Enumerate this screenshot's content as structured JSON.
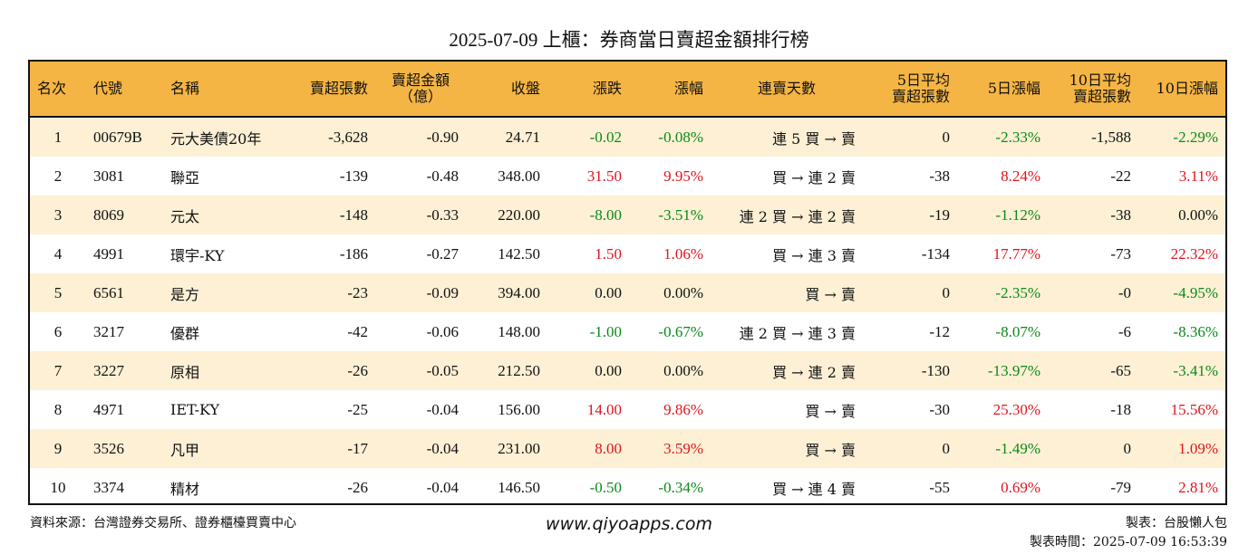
{
  "title": "2025-07-09 上櫃：券商當日賣超金額排行榜",
  "headers": [
    {
      "lines": [
        "名次"
      ],
      "align": "l"
    },
    {
      "lines": [
        "代號"
      ],
      "align": "l"
    },
    {
      "lines": [
        "名稱"
      ],
      "align": "l"
    },
    {
      "lines": [
        "賣超張數"
      ],
      "align": "r"
    },
    {
      "lines": [
        "賣超金額",
        "（億）"
      ],
      "align": "c"
    },
    {
      "lines": [
        "收盤"
      ],
      "align": "r"
    },
    {
      "lines": [
        "漲跌"
      ],
      "align": "r"
    },
    {
      "lines": [
        "漲幅"
      ],
      "align": "r"
    },
    {
      "lines": [
        "連賣天數"
      ],
      "align": "c"
    },
    {
      "lines": [
        "5日平均",
        "賣超張數"
      ],
      "align": "r"
    },
    {
      "lines": [
        "5日漲幅"
      ],
      "align": "r"
    },
    {
      "lines": [
        "10日平均",
        "賣超張數"
      ],
      "align": "r"
    },
    {
      "lines": [
        "10日漲幅"
      ],
      "align": "r"
    }
  ],
  "rows": [
    {
      "rank": "1",
      "code": "00679B",
      "name": "元大美債20年",
      "sell_lots": "-3,628",
      "sell_amt": "-0.90",
      "close": "24.71",
      "chg": "-0.02",
      "pct": "-0.08%",
      "days": "連 5 買 → 賣",
      "avg5": "0",
      "pct5": "-2.33%",
      "avg10": "-1,588",
      "pct10": "-2.29%"
    },
    {
      "rank": "2",
      "code": "3081",
      "name": "聯亞",
      "sell_lots": "-139",
      "sell_amt": "-0.48",
      "close": "348.00",
      "chg": "31.50",
      "pct": "9.95%",
      "days": "買 → 連 2 賣",
      "avg5": "-38",
      "pct5": "8.24%",
      "avg10": "-22",
      "pct10": "3.11%"
    },
    {
      "rank": "3",
      "code": "8069",
      "name": "元太",
      "sell_lots": "-148",
      "sell_amt": "-0.33",
      "close": "220.00",
      "chg": "-8.00",
      "pct": "-3.51%",
      "days": "連 2 買 → 連 2 賣",
      "avg5": "-19",
      "pct5": "-1.12%",
      "avg10": "-38",
      "pct10": "0.00%"
    },
    {
      "rank": "4",
      "code": "4991",
      "name": "環宇-KY",
      "sell_lots": "-186",
      "sell_amt": "-0.27",
      "close": "142.50",
      "chg": "1.50",
      "pct": "1.06%",
      "days": "買 → 連 3 賣",
      "avg5": "-134",
      "pct5": "17.77%",
      "avg10": "-73",
      "pct10": "22.32%"
    },
    {
      "rank": "5",
      "code": "6561",
      "name": "是方",
      "sell_lots": "-23",
      "sell_amt": "-0.09",
      "close": "394.00",
      "chg": "0.00",
      "pct": "0.00%",
      "days": "買 → 賣",
      "avg5": "0",
      "pct5": "-2.35%",
      "avg10": "-0",
      "pct10": "-4.95%"
    },
    {
      "rank": "6",
      "code": "3217",
      "name": "優群",
      "sell_lots": "-42",
      "sell_amt": "-0.06",
      "close": "148.00",
      "chg": "-1.00",
      "pct": "-0.67%",
      "days": "連 2 買 → 連 3 賣",
      "avg5": "-12",
      "pct5": "-8.07%",
      "avg10": "-6",
      "pct10": "-8.36%"
    },
    {
      "rank": "7",
      "code": "3227",
      "name": "原相",
      "sell_lots": "-26",
      "sell_amt": "-0.05",
      "close": "212.50",
      "chg": "0.00",
      "pct": "0.00%",
      "days": "買 → 連 2 賣",
      "avg5": "-130",
      "pct5": "-13.97%",
      "avg10": "-65",
      "pct10": "-3.41%"
    },
    {
      "rank": "8",
      "code": "4971",
      "name": "IET-KY",
      "sell_lots": "-25",
      "sell_amt": "-0.04",
      "close": "156.00",
      "chg": "14.00",
      "pct": "9.86%",
      "days": "買 → 賣",
      "avg5": "-30",
      "pct5": "25.30%",
      "avg10": "-18",
      "pct10": "15.56%"
    },
    {
      "rank": "9",
      "code": "3526",
      "name": "凡甲",
      "sell_lots": "-17",
      "sell_amt": "-0.04",
      "close": "231.00",
      "chg": "8.00",
      "pct": "3.59%",
      "days": "買 → 賣",
      "avg5": "0",
      "pct5": "-1.49%",
      "avg10": "0",
      "pct10": "1.09%"
    },
    {
      "rank": "10",
      "code": "3374",
      "name": "精材",
      "sell_lots": "-26",
      "sell_amt": "-0.04",
      "close": "146.50",
      "chg": "-0.50",
      "pct": "-0.34%",
      "days": "買 → 連 4 賣",
      "avg5": "-55",
      "pct5": "0.69%",
      "avg10": "-79",
      "pct10": "2.81%"
    }
  ],
  "colors": {
    "header_bg": "#f5b544",
    "stripe": "#fdf0d4",
    "up": "#e0141e",
    "down": "#0a8a1a"
  },
  "footer": {
    "source": "資料來源：台灣證券交易所、證券櫃檯買賣中心",
    "website": "www.qiyoapps.com",
    "maker": "製表：台股懶人包",
    "time": "製表時間：2025-07-09 16:53:39"
  }
}
